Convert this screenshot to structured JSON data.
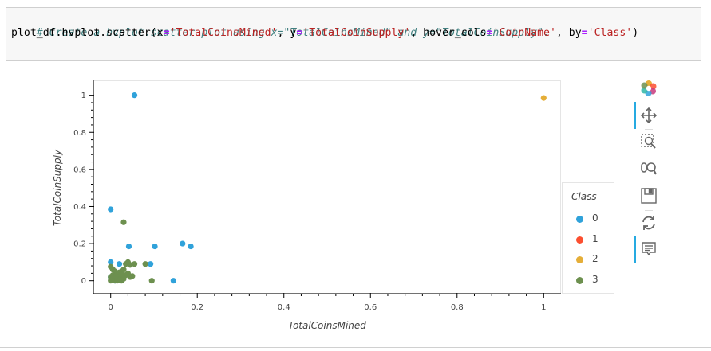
{
  "cell": {
    "line1": "# Create a hvplot.scatter plot using x=\"TotalCoinsMined\" and y=\"TotalCoinSupply\".",
    "line2_parts": {
      "p1": "plot_df.hvplot.scatter(x",
      "eq1": "=",
      "s1": "'TotalCoinsMined'",
      "p2": ", y",
      "eq2": "=",
      "s2": "'TotalCoinSupply'",
      "p3": ", hover_cols",
      "eq3": "=",
      "s3": "'CoinName'",
      "p4": ", by",
      "eq4": "=",
      "s4": "'Class'",
      "p5": ")"
    }
  },
  "legend": {
    "title": "Class",
    "items": [
      {
        "label": "0",
        "color": "#30a2da"
      },
      {
        "label": "1",
        "color": "#fc4f30"
      },
      {
        "label": "2",
        "color": "#e5ae38"
      },
      {
        "label": "3",
        "color": "#6d904f"
      }
    ]
  },
  "toolbar": {
    "tools": [
      "bokeh-logo-icon",
      "pan-icon",
      "box-zoom-icon",
      "wheel-zoom-icon",
      "save-icon",
      "reset-icon",
      "hover-icon"
    ]
  },
  "chart_data": {
    "type": "scatter",
    "xlabel": "TotalCoinsMined",
    "ylabel": "TotalCoinSupply",
    "xlim": [
      -0.04,
      1.04
    ],
    "ylim": [
      -0.07,
      1.08
    ],
    "xticks": [
      "0",
      "0.2",
      "0.4",
      "0.6",
      "0.8",
      "1"
    ],
    "xtick_values": [
      0,
      0.2,
      0.4,
      0.6,
      0.8,
      1.0
    ],
    "yticks": [
      "0",
      "0.2",
      "0.4",
      "0.6",
      "0.8",
      "1"
    ],
    "ytick_values": [
      0,
      0.2,
      0.4,
      0.6,
      0.8,
      1.0
    ],
    "series": [
      {
        "name": "0",
        "color": "#30a2da",
        "points": [
          [
            0.055,
            1.0
          ],
          [
            0.0,
            0.385
          ],
          [
            0.042,
            0.185
          ],
          [
            0.102,
            0.185
          ],
          [
            0.166,
            0.2
          ],
          [
            0.185,
            0.185
          ],
          [
            0.0,
            0.1
          ],
          [
            0.02,
            0.09
          ],
          [
            0.092,
            0.09
          ],
          [
            0.145,
            0.0
          ],
          [
            0.0,
            0.02
          ],
          [
            0.01,
            0.0
          ]
        ]
      },
      {
        "name": "1",
        "color": "#fc4f30",
        "points": []
      },
      {
        "name": "2",
        "color": "#e5ae38",
        "points": [
          [
            1.0,
            0.985
          ]
        ]
      },
      {
        "name": "3",
        "color": "#6d904f",
        "points": [
          [
            0.03,
            0.315
          ],
          [
            0.0,
            0.075
          ],
          [
            0.005,
            0.06
          ],
          [
            0.01,
            0.05
          ],
          [
            0.015,
            0.04
          ],
          [
            0.02,
            0.045
          ],
          [
            0.025,
            0.05
          ],
          [
            0.03,
            0.06
          ],
          [
            0.035,
            0.09
          ],
          [
            0.04,
            0.1
          ],
          [
            0.045,
            0.085
          ],
          [
            0.055,
            0.09
          ],
          [
            0.08,
            0.09
          ],
          [
            0.04,
            0.04
          ],
          [
            0.05,
            0.025
          ],
          [
            0.0,
            0.02
          ],
          [
            0.005,
            0.01
          ],
          [
            0.01,
            0.0
          ],
          [
            0.015,
            0.0
          ],
          [
            0.02,
            0.02
          ],
          [
            0.025,
            0.0
          ],
          [
            0.03,
            0.01
          ],
          [
            0.0,
            0.0
          ],
          [
            0.005,
            0.03
          ],
          [
            0.035,
            0.03
          ],
          [
            0.045,
            0.02
          ],
          [
            0.095,
            0.0
          ],
          [
            0.02,
            0.005
          ],
          [
            0.012,
            0.025
          ],
          [
            0.028,
            0.035
          ]
        ]
      }
    ]
  }
}
